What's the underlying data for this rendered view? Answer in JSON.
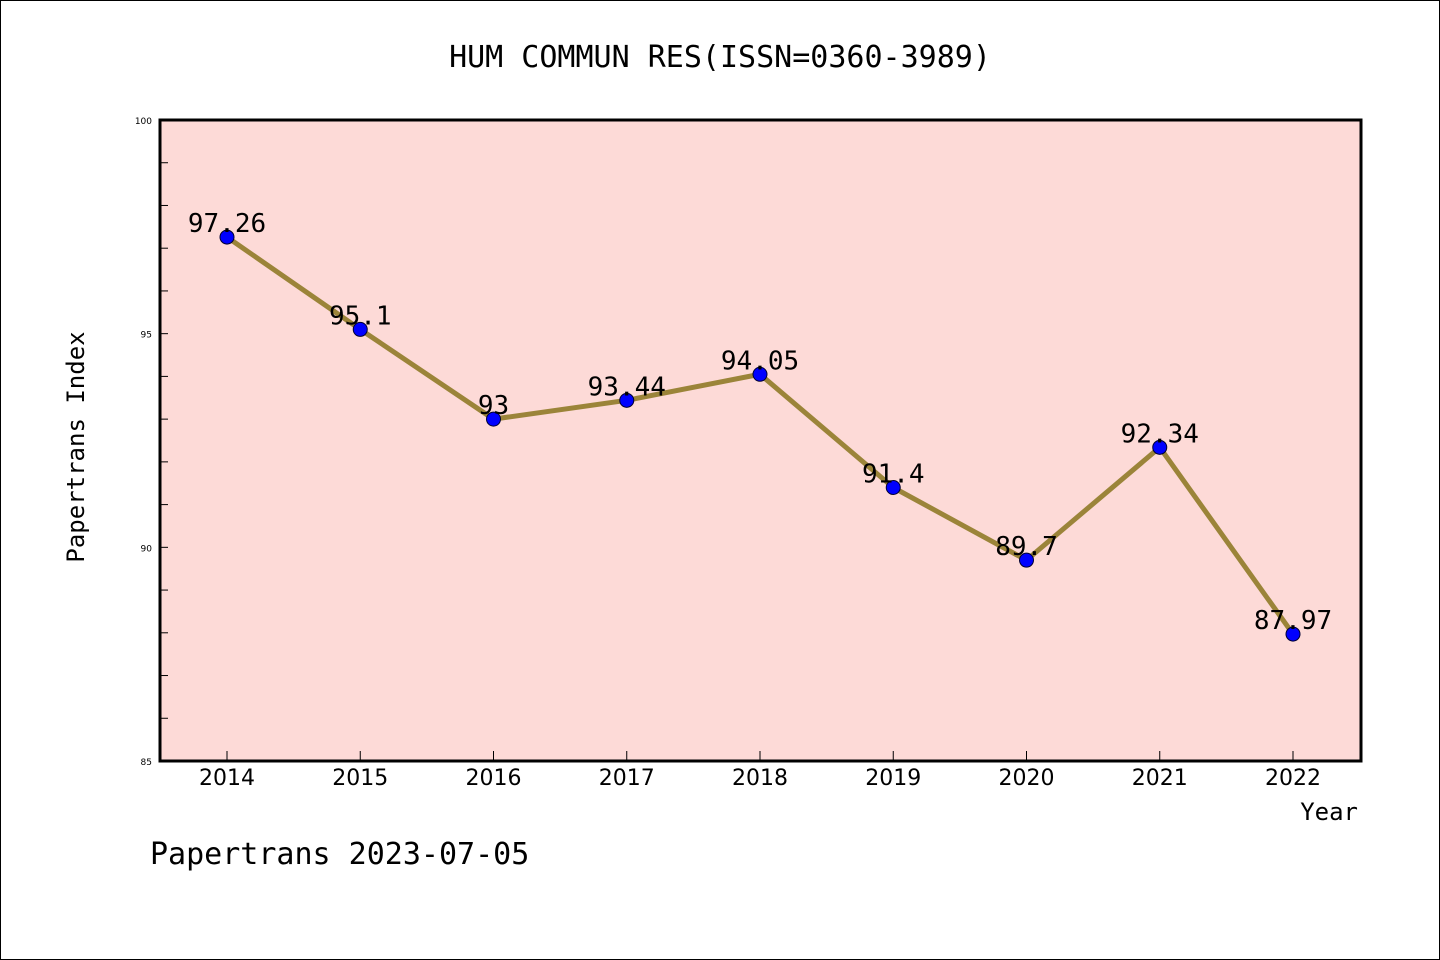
{
  "footer": {
    "text": "Papertrans 2023-07-05"
  },
  "colors": {
    "plot_background": "#fddad7",
    "line": "#9b8439",
    "marker": "#0000ff",
    "axis": "#000000"
  },
  "chart_data": {
    "type": "line",
    "title": "HUM COMMUN RES(ISSN=0360-3989)",
    "xlabel": "Year",
    "ylabel": "Papertrans Index",
    "categories": [
      "2014",
      "2015",
      "2016",
      "2017",
      "2018",
      "2019",
      "2020",
      "2021",
      "2022"
    ],
    "series": [
      {
        "values": [
          97.26,
          95.1,
          93,
          93.44,
          94.05,
          91.4,
          89.7,
          92.34,
          87.97
        ],
        "labels": [
          "97.26",
          "95.1",
          "93",
          "93.44",
          "94.05",
          "91.4",
          "89.7",
          "92.34",
          "87.97"
        ]
      }
    ],
    "ylim": [
      85,
      100
    ],
    "yticks": [
      "85",
      "90",
      "95",
      "100"
    ],
    "ytick_values": [
      85,
      90,
      95,
      100
    ],
    "y_minor_step": 1,
    "grid": false,
    "legend": "none"
  }
}
